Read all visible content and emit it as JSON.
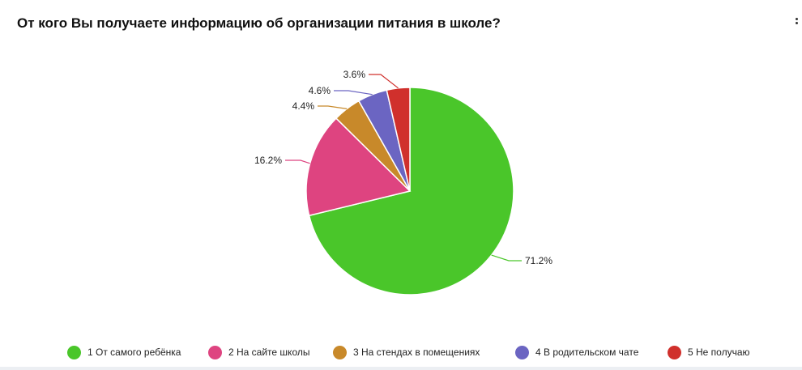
{
  "title": "От кого Вы получаете информацию об организации питания в школе?",
  "menu_icon": "kebab-menu-icon",
  "chart_data": {
    "type": "pie",
    "series": [
      {
        "name": "1 От самого ребёнка",
        "value": 71.2,
        "label": "71.2%",
        "color": "#4ac62a"
      },
      {
        "name": "2 На сайте школы",
        "value": 16.2,
        "label": "16.2%",
        "color": "#de4480"
      },
      {
        "name": "3 На стендах в помещениях",
        "value": 4.4,
        "label": "4.4%",
        "color": "#c8892a"
      },
      {
        "name": "4 В родительском чате",
        "value": 4.6,
        "label": "4.6%",
        "color": "#6b65c2"
      },
      {
        "name": "5 Не получаю",
        "value": 3.6,
        "label": "3.6%",
        "color": "#d0302c"
      }
    ],
    "legend_position": "bottom"
  }
}
